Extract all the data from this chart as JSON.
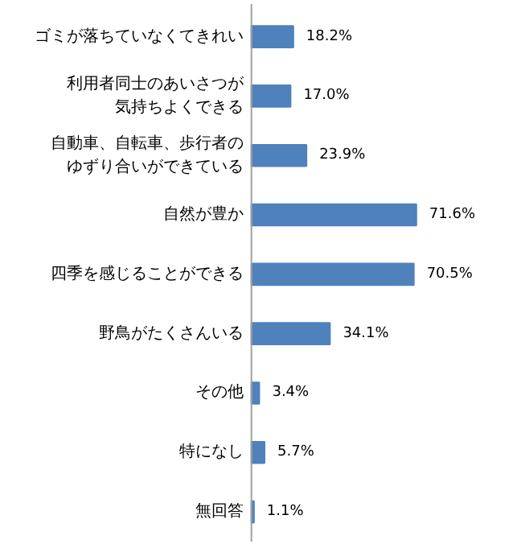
{
  "chart_data": {
    "type": "bar",
    "orientation": "horizontal",
    "categories": [
      "ゴミが落ちていなくてきれい",
      "利用者同士のあいさつが気持ちよくできる",
      "自動車、自転車、歩行者のゆずり合いができている",
      "自然が豊か",
      "四季を感じることができる",
      "野鳥がたくさんいる",
      "その他",
      "特になし",
      "無回答"
    ],
    "values": [
      18.2,
      17.0,
      23.9,
      71.6,
      70.5,
      34.1,
      3.4,
      5.7,
      1.1
    ],
    "value_labels": [
      "18.2%",
      "17.0%",
      "23.9%",
      "71.6%",
      "70.5%",
      "34.1%",
      "3.4%",
      "5.7%",
      "1.1%"
    ],
    "color": "#4f81bd",
    "grid": false
  }
}
